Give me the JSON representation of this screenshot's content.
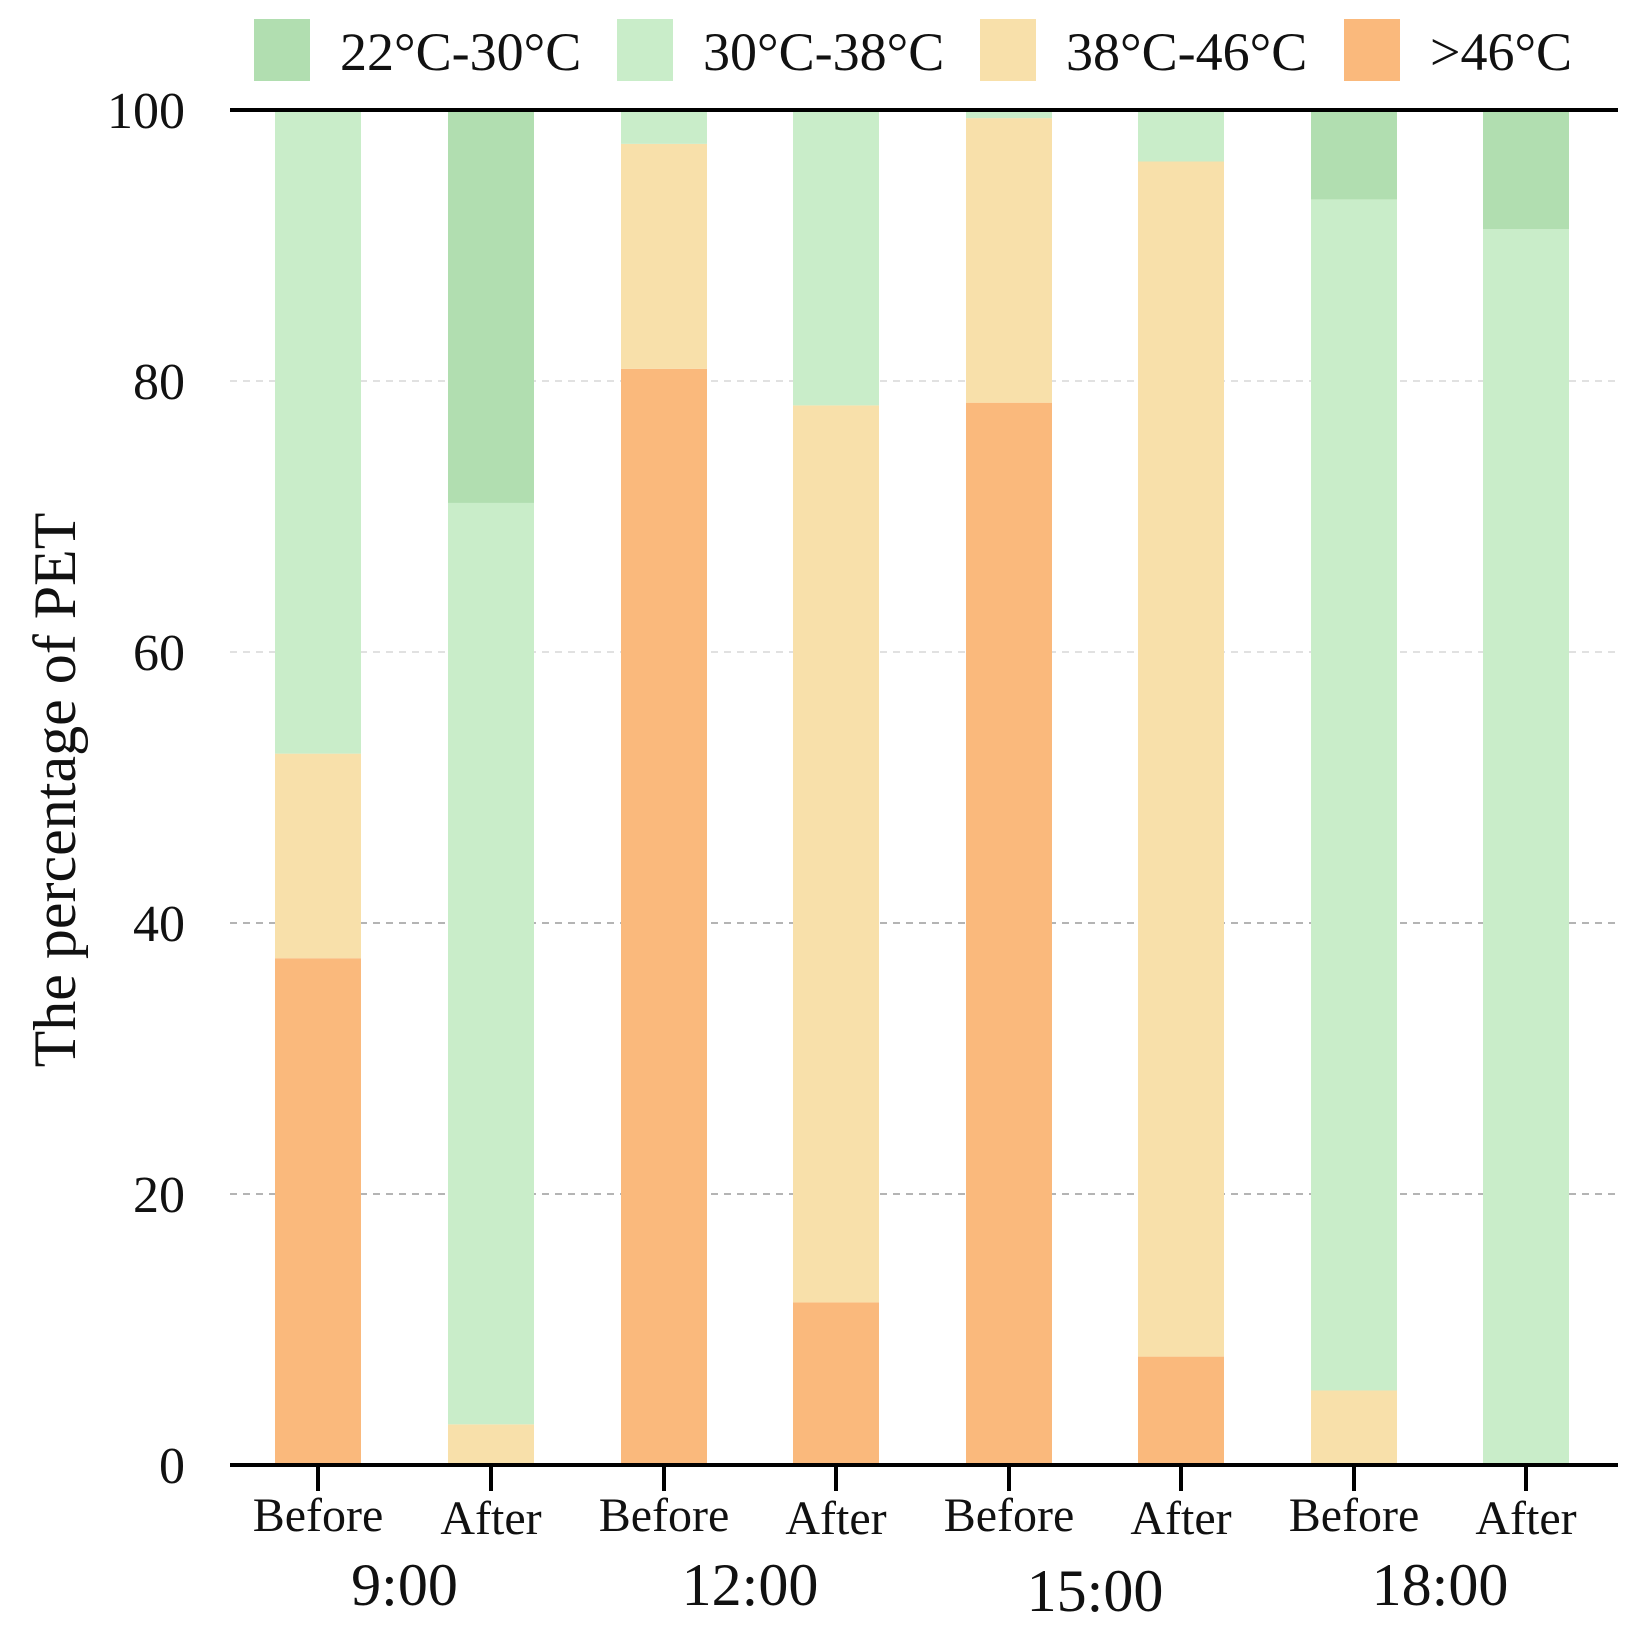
{
  "chart_data": {
    "type": "bar",
    "stacked": true,
    "title": "",
    "xlabel": "",
    "ylabel": "The percentage of PET",
    "ylim": [
      0,
      100
    ],
    "yticks": [
      0,
      20,
      40,
      60,
      80,
      100
    ],
    "grid": "horizontal dashed",
    "legend_position": "top",
    "categories": [
      "Before",
      "After",
      "Before",
      "After",
      "Before",
      "After",
      "Before",
      "After"
    ],
    "groups": [
      {
        "label": "9:00",
        "start": 0,
        "end": 1
      },
      {
        "label": "12:00",
        "start": 2,
        "end": 3
      },
      {
        "label": "15:00",
        "start": 4,
        "end": 5
      },
      {
        "label": "18:00",
        "start": 6,
        "end": 7
      }
    ],
    "stack_order": [
      ">46°C",
      "38°C-46°C",
      "30°C-38°C",
      "22°C-30°C"
    ],
    "series": [
      {
        "name": "22°C-30°C",
        "color": "#B1DEB0",
        "values": [
          0,
          29.0,
          0,
          0,
          0,
          0,
          6.6,
          8.8
        ]
      },
      {
        "name": "30°C-38°C",
        "color": "#C9EDC9",
        "values": [
          47.5,
          68.0,
          2.5,
          21.8,
          0.6,
          3.8,
          87.9,
          91.2
        ]
      },
      {
        "name": "38°C-46°C",
        "color": "#F8E0AA",
        "values": [
          15.1,
          3.0,
          16.6,
          66.2,
          21.0,
          88.2,
          5.5,
          0
        ]
      },
      {
        "name": ">46°C",
        "color": "#FAB97C",
        "values": [
          37.4,
          0,
          80.9,
          12.0,
          78.4,
          8.0,
          0,
          0
        ]
      }
    ]
  }
}
